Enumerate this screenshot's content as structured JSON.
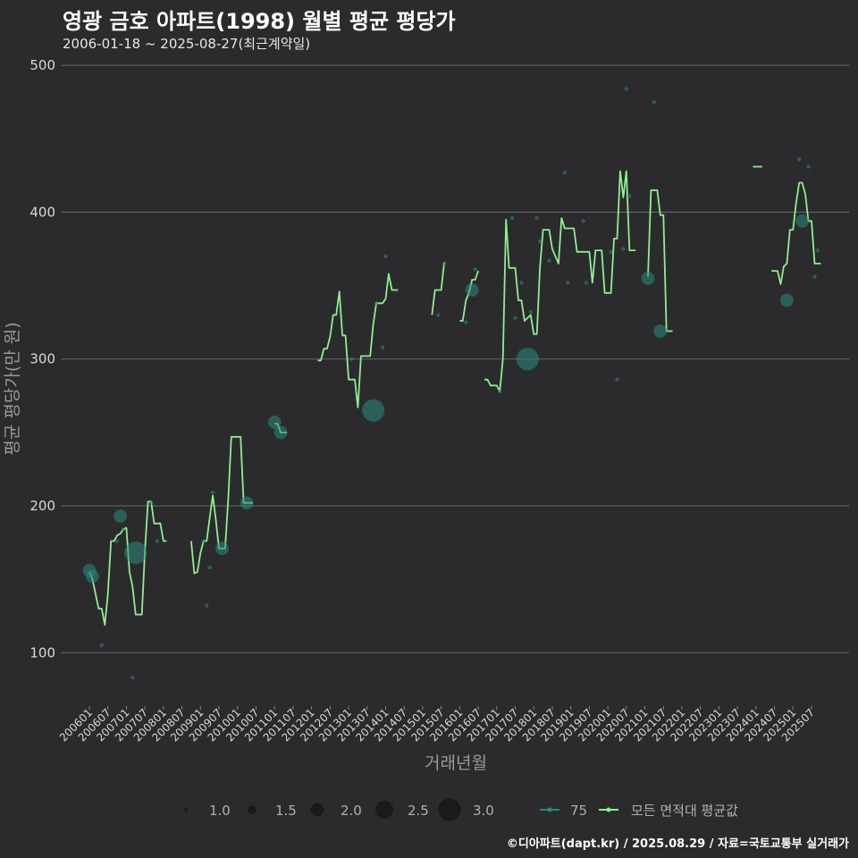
{
  "chart_data": {
    "type": "scatter",
    "title": "영광 금호 아파트(1998) 월별 평균 평당가",
    "subtitle": "2006-01-18 ~ 2025-08-27(최근계약일)",
    "xlabel": "거래년월",
    "ylabel": "평균 평당가(만 원)",
    "caption": "©디아파트(dapt.kr) / 2025.08.29 / 자료=국토교통부 실거래가",
    "ylim": [
      60,
      510
    ],
    "yticks": [
      100,
      200,
      300,
      400,
      500
    ],
    "xticks": [
      "200601",
      "200607",
      "200701",
      "200707",
      "200801",
      "200807",
      "200901",
      "200907",
      "201001",
      "201007",
      "201101",
      "201107",
      "201201",
      "201207",
      "201301",
      "201307",
      "201401",
      "201407",
      "201501",
      "201507",
      "201601",
      "201607",
      "201701",
      "201707",
      "201801",
      "201807",
      "201901",
      "201907",
      "202001",
      "202007",
      "202101",
      "202107",
      "202201",
      "202207",
      "202301",
      "202307",
      "202401",
      "202407",
      "202501",
      "202507"
    ],
    "grid": true,
    "legend": {
      "placement": "bottom",
      "size_title": "",
      "size_entries": [
        "1.0",
        "1.5",
        "2.0",
        "2.5",
        "3.0"
      ],
      "series_entries": [
        "75",
        "모든 면적대 평균값"
      ]
    },
    "colors": {
      "area_75": "#2a8a80",
      "avg_line": "#90ee90",
      "grid": "#5e5e5e",
      "tick_text": "#d8d8d8",
      "axis_title": "#9a9a9a"
    },
    "series": [
      {
        "name": "75",
        "type": "scatter",
        "points": [
          {
            "x": "200601",
            "y": 156,
            "size": 2.0
          },
          {
            "x": "200602",
            "y": 152,
            "size": 2.0
          },
          {
            "x": "200605",
            "y": 105,
            "size": 1.0
          },
          {
            "x": "200610",
            "y": 176,
            "size": 1.0
          },
          {
            "x": "200611",
            "y": 193,
            "size": 2.0
          },
          {
            "x": "200612",
            "y": 184,
            "size": 1.0
          },
          {
            "x": "200703",
            "y": 83,
            "size": 1.0
          },
          {
            "x": "200704",
            "y": 168,
            "size": 3.0
          },
          {
            "x": "200709",
            "y": 202,
            "size": 1.0
          },
          {
            "x": "200711",
            "y": 176,
            "size": 1.0
          },
          {
            "x": "200902",
            "y": 176,
            "size": 1.0
          },
          {
            "x": "200903",
            "y": 132,
            "size": 1.0
          },
          {
            "x": "200904",
            "y": 158,
            "size": 1.0
          },
          {
            "x": "200905",
            "y": 209,
            "size": 1.0
          },
          {
            "x": "200908",
            "y": 171,
            "size": 2.0
          },
          {
            "x": "201004",
            "y": 202,
            "size": 2.0
          },
          {
            "x": "201101",
            "y": 257,
            "size": 2.0
          },
          {
            "x": "201103",
            "y": 250,
            "size": 2.0
          },
          {
            "x": "201302",
            "y": 300,
            "size": 1.0
          },
          {
            "x": "201309",
            "y": 265,
            "size": 3.0
          },
          {
            "x": "201310",
            "y": 338,
            "size": 1.0
          },
          {
            "x": "201312",
            "y": 308,
            "size": 1.0
          },
          {
            "x": "201401",
            "y": 370,
            "size": 1.0
          },
          {
            "x": "201506",
            "y": 330,
            "size": 1.0
          },
          {
            "x": "201508",
            "y": 365,
            "size": 1.0
          },
          {
            "x": "201603",
            "y": 325,
            "size": 1.0
          },
          {
            "x": "201605",
            "y": 347,
            "size": 2.0
          },
          {
            "x": "201606",
            "y": 361,
            "size": 1.0
          },
          {
            "x": "201702",
            "y": 278,
            "size": 1.0
          },
          {
            "x": "201706",
            "y": 396,
            "size": 1.0
          },
          {
            "x": "201707",
            "y": 328,
            "size": 1.0
          },
          {
            "x": "201709",
            "y": 352,
            "size": 1.0
          },
          {
            "x": "201711",
            "y": 300,
            "size": 3.0
          },
          {
            "x": "201712",
            "y": 332,
            "size": 1.0
          },
          {
            "x": "201802",
            "y": 396,
            "size": 1.0
          },
          {
            "x": "201803",
            "y": 380,
            "size": 1.0
          },
          {
            "x": "201806",
            "y": 367,
            "size": 1.0
          },
          {
            "x": "201811",
            "y": 427,
            "size": 1.0
          },
          {
            "x": "201812",
            "y": 352,
            "size": 1.0
          },
          {
            "x": "201905",
            "y": 394,
            "size": 1.0
          },
          {
            "x": "201906",
            "y": 352,
            "size": 1.0
          },
          {
            "x": "202002",
            "y": 373,
            "size": 1.0
          },
          {
            "x": "202004",
            "y": 286,
            "size": 1.0
          },
          {
            "x": "202006",
            "y": 375,
            "size": 1.0
          },
          {
            "x": "202007",
            "y": 484,
            "size": 1.0
          },
          {
            "x": "202008",
            "y": 411,
            "size": 1.0
          },
          {
            "x": "202102",
            "y": 355,
            "size": 2.0
          },
          {
            "x": "202104",
            "y": 475,
            "size": 1.0
          },
          {
            "x": "202106",
            "y": 319,
            "size": 2.0
          },
          {
            "x": "202411",
            "y": 340,
            "size": 2.0
          },
          {
            "x": "202503",
            "y": 436,
            "size": 1.0
          },
          {
            "x": "202504",
            "y": 394,
            "size": 2.0
          },
          {
            "x": "202506",
            "y": 431,
            "size": 1.0
          },
          {
            "x": "202508",
            "y": 356,
            "size": 1.0
          },
          {
            "x": "202509",
            "y": 374,
            "size": 1.0
          }
        ]
      },
      {
        "name": "모든 면적대 평균값",
        "type": "line",
        "segments": [
          [
            [
              "200601",
              155
            ],
            [
              "200602",
              150
            ],
            [
              "200603",
              140
            ],
            [
              "200604",
              130
            ],
            [
              "200605",
              130
            ],
            [
              "200606",
              119
            ],
            [
              "200607",
              140
            ],
            [
              "200608",
              176
            ],
            [
              "200609",
              176
            ],
            [
              "200610",
              180
            ],
            [
              "200611",
              181
            ],
            [
              "200612",
              184
            ],
            [
              "200701",
              185
            ],
            [
              "200702",
              155
            ],
            [
              "200703",
              145
            ],
            [
              "200704",
              126
            ],
            [
              "200705",
              126
            ],
            [
              "200706",
              126
            ],
            [
              "200707",
              170
            ],
            [
              "200708",
              203
            ],
            [
              "200709",
              203
            ],
            [
              "200710",
              188
            ],
            [
              "200711",
              188
            ],
            [
              "200712",
              188
            ],
            [
              "200801",
              176
            ],
            [
              "200802",
              176
            ]
          ],
          [
            [
              "200810",
              176
            ],
            [
              "200811",
              154
            ],
            [
              "200812",
              155
            ],
            [
              "200901",
              168
            ],
            [
              "200902",
              176
            ],
            [
              "200903",
              176
            ],
            [
              "200904",
              192
            ],
            [
              "200905",
              207
            ],
            [
              "200906",
              190
            ],
            [
              "200907",
              171
            ],
            [
              "200908",
              171
            ],
            [
              "200909",
              171
            ],
            [
              "200910",
              205
            ],
            [
              "200911",
              247
            ],
            [
              "200912",
              247
            ],
            [
              "201001",
              247
            ],
            [
              "201002",
              247
            ],
            [
              "201003",
              202
            ],
            [
              "201004",
              202
            ],
            [
              "201005",
              202
            ],
            [
              "201006",
              202
            ]
          ],
          [
            [
              "201101",
              256
            ],
            [
              "201102",
              256
            ],
            [
              "201103",
              250
            ],
            [
              "201104",
              250
            ],
            [
              "201105",
              250
            ]
          ],
          [
            [
              "201203",
              299
            ],
            [
              "201204",
              299
            ],
            [
              "201205",
              307
            ],
            [
              "201206",
              307
            ],
            [
              "201207",
              315
            ],
            [
              "201208",
              330
            ],
            [
              "201209",
              330
            ],
            [
              "201210",
              346
            ],
            [
              "201211",
              316
            ],
            [
              "201212",
              316
            ],
            [
              "201301",
              286
            ],
            [
              "201302",
              286
            ],
            [
              "201303",
              286
            ],
            [
              "201304",
              267
            ],
            [
              "201305",
              302
            ],
            [
              "201306",
              302
            ],
            [
              "201307",
              302
            ],
            [
              "201308",
              302
            ],
            [
              "201309",
              324
            ],
            [
              "201310",
              338
            ],
            [
              "201311",
              338
            ],
            [
              "201312",
              338
            ],
            [
              "201401",
              341
            ],
            [
              "201402",
              358
            ],
            [
              "201403",
              347
            ],
            [
              "201404",
              347
            ],
            [
              "201405",
              347
            ]
          ],
          [
            [
              "201504",
              330
            ],
            [
              "201505",
              347
            ],
            [
              "201506",
              347
            ],
            [
              "201507",
              347
            ],
            [
              "201508",
              366
            ]
          ],
          [
            [
              "201601",
              326
            ],
            [
              "201602",
              326
            ],
            [
              "201603",
              340
            ],
            [
              "201604",
              345
            ],
            [
              "201605",
              354
            ],
            [
              "201606",
              354
            ],
            [
              "201607",
              360
            ]
          ],
          [
            [
              "201609",
              286
            ],
            [
              "201610",
              286
            ],
            [
              "201611",
              282
            ],
            [
              "201612",
              282
            ],
            [
              "201701",
              282
            ],
            [
              "201702",
              278
            ],
            [
              "201703",
              300
            ],
            [
              "201704",
              395
            ],
            [
              "201705",
              362
            ],
            [
              "201706",
              362
            ],
            [
              "201707",
              362
            ],
            [
              "201708",
              340
            ],
            [
              "201709",
              340
            ],
            [
              "201710",
              326
            ],
            [
              "201711",
              328
            ],
            [
              "201712",
              330
            ],
            [
              "201801",
              317
            ],
            [
              "201802",
              317
            ],
            [
              "201803",
              362
            ],
            [
              "201804",
              388
            ],
            [
              "201805",
              388
            ],
            [
              "201806",
              388
            ],
            [
              "201807",
              375
            ],
            [
              "201808",
              370
            ],
            [
              "201809",
              365
            ],
            [
              "201810",
              396
            ],
            [
              "201811",
              389
            ],
            [
              "201812",
              389
            ],
            [
              "201901",
              389
            ],
            [
              "201902",
              389
            ],
            [
              "201903",
              373
            ],
            [
              "201904",
              373
            ],
            [
              "201905",
              373
            ],
            [
              "201906",
              373
            ],
            [
              "201907",
              373
            ],
            [
              "201908",
              352
            ],
            [
              "201909",
              374
            ],
            [
              "201910",
              374
            ],
            [
              "201911",
              374
            ],
            [
              "201912",
              345
            ],
            [
              "202001",
              345
            ],
            [
              "202002",
              345
            ],
            [
              "202003",
              382
            ],
            [
              "202004",
              382
            ],
            [
              "202005",
              428
            ],
            [
              "202006",
              410
            ],
            [
              "202007",
              428
            ],
            [
              "202008",
              374
            ],
            [
              "202009",
              374
            ],
            [
              "202010",
              374
            ]
          ],
          [
            [
              "202102",
              356
            ],
            [
              "202103",
              415
            ],
            [
              "202104",
              415
            ],
            [
              "202105",
              415
            ],
            [
              "202106",
              398
            ],
            [
              "202107",
              398
            ],
            [
              "202108",
              319
            ],
            [
              "202109",
              319
            ],
            [
              "202110",
              319
            ]
          ],
          [
            [
              "202312",
              431
            ],
            [
              "202401",
              431
            ],
            [
              "202402",
              431
            ],
            [
              "202403",
              431
            ]
          ],
          [
            [
              "202406",
              360
            ],
            [
              "202407",
              360
            ],
            [
              "202408",
              360
            ],
            [
              "202409",
              351
            ],
            [
              "202410",
              363
            ],
            [
              "202411",
              365
            ],
            [
              "202412",
              388
            ],
            [
              "202501",
              388
            ],
            [
              "202502",
              406
            ],
            [
              "202503",
              420
            ],
            [
              "202504",
              420
            ],
            [
              "202505",
              412
            ],
            [
              "202506",
              394
            ],
            [
              "202507",
              394
            ],
            [
              "202508",
              365
            ],
            [
              "202509",
              365
            ],
            [
              "202510",
              365
            ]
          ]
        ]
      }
    ]
  }
}
